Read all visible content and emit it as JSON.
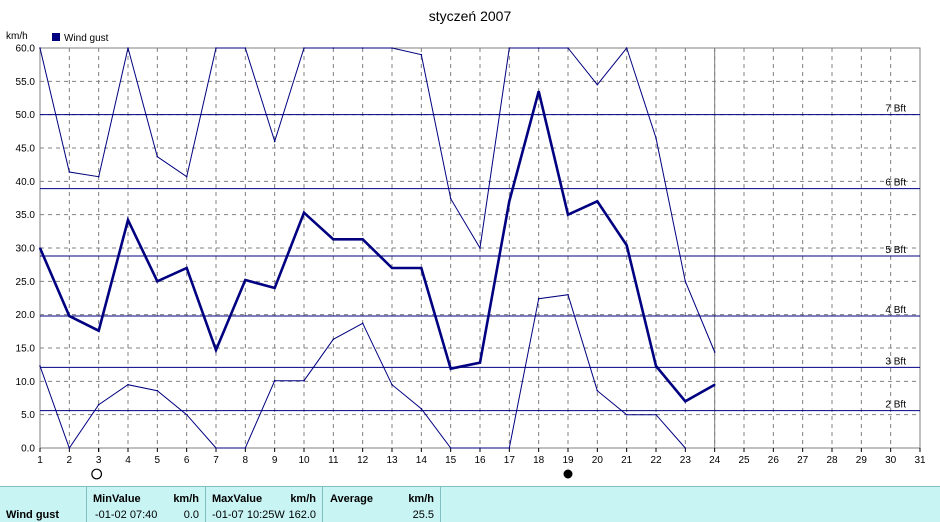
{
  "title": "styczeń 2007",
  "y_unit": "km/h",
  "legend": {
    "label": "Wind gust",
    "color": "#000080"
  },
  "beaufort": [
    {
      "label": "2 Bft",
      "value": 5.6
    },
    {
      "label": "3 Bft",
      "value": 12.1
    },
    {
      "label": "4 Bft",
      "value": 19.8
    },
    {
      "label": "5 Bft",
      "value": 28.8
    },
    {
      "label": "6 Bft",
      "value": 38.9
    },
    {
      "label": "7 Bft",
      "value": 50.0
    }
  ],
  "moon_phases": [
    {
      "day": 3,
      "phase": "full-moon"
    },
    {
      "day": 19,
      "phase": "new-moon"
    }
  ],
  "chart_data": {
    "type": "line",
    "xlim": [
      1,
      31
    ],
    "ylim": [
      0,
      60
    ],
    "x_ticks": [
      "1",
      "2",
      "3",
      "4",
      "5",
      "6",
      "7",
      "8",
      "9",
      "10",
      "11",
      "12",
      "13",
      "14",
      "15",
      "16",
      "17",
      "18",
      "19",
      "20",
      "21",
      "22",
      "23",
      "24",
      "25",
      "26",
      "27",
      "28",
      "29",
      "30",
      "31"
    ],
    "y_ticks": [
      "0.0",
      "5.0",
      "10.0",
      "15.0",
      "20.0",
      "25.0",
      "30.0",
      "35.0",
      "40.0",
      "45.0",
      "50.0",
      "55.0",
      "60.0"
    ],
    "grid": true,
    "x": [
      1,
      2,
      3,
      4,
      5,
      6,
      7,
      8,
      9,
      10,
      11,
      12,
      13,
      14,
      15,
      16,
      17,
      18,
      19,
      20,
      21,
      22,
      23,
      24
    ],
    "series": [
      {
        "name": "Wind gust",
        "role": "average",
        "values": [
          30.0,
          19.8,
          17.6,
          34.2,
          25.0,
          27.0,
          14.7,
          25.2,
          24.0,
          35.3,
          31.3,
          31.3,
          27.0,
          27.0,
          11.9,
          12.8,
          37.0,
          53.5,
          35.0,
          37.0,
          30.4,
          12.3,
          7.0,
          9.5
        ]
      },
      {
        "role": "max",
        "values": [
          60.0,
          41.4,
          40.7,
          61.0,
          43.7,
          40.7,
          61.0,
          61.0,
          46.0,
          61.0,
          61.0,
          61.0,
          61.0,
          59.0,
          37.4,
          30.0,
          61.0,
          61.0,
          61.0,
          54.5,
          60.0,
          46.5,
          25.0,
          14.4
        ]
      },
      {
        "role": "min",
        "values": [
          12.3,
          0.0,
          6.5,
          9.5,
          8.6,
          5.0,
          0.0,
          0.0,
          10.1,
          10.1,
          16.3,
          18.7,
          9.5,
          5.9,
          0.0,
          0.0,
          0.0,
          22.4,
          23.0,
          8.6,
          5.0,
          5.0,
          0.0,
          null
        ]
      }
    ]
  },
  "stats": {
    "series_name": "Wind gust",
    "min": {
      "header": "MinValue",
      "unit": "km/h",
      "date_time": "-01-02  07:40",
      "value": "0.0"
    },
    "max": {
      "header": "MaxValue",
      "unit": "km/h",
      "date_time": "-01-07  10:25W",
      "value": "162.0"
    },
    "avg": {
      "header": "Average",
      "unit": "km/h",
      "value": "25.5"
    }
  }
}
